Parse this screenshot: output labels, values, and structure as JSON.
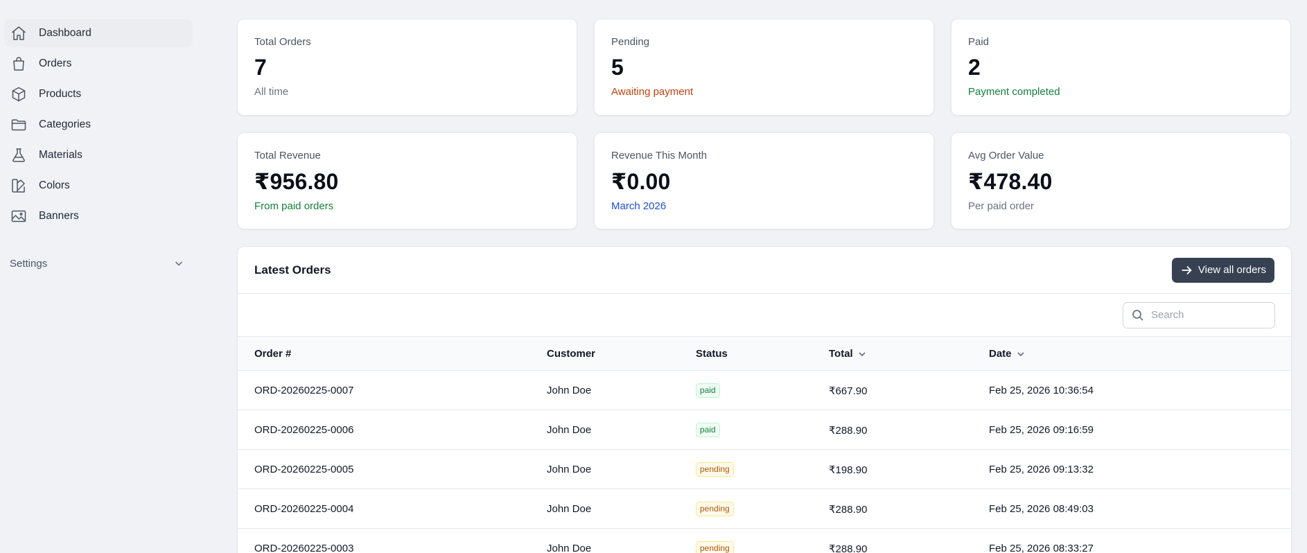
{
  "sidebar": {
    "items": [
      {
        "label": "Dashboard",
        "icon": "home-icon",
        "active": true
      },
      {
        "label": "Orders",
        "icon": "shopping-bag-icon",
        "active": false
      },
      {
        "label": "Products",
        "icon": "cube-icon",
        "active": false
      },
      {
        "label": "Categories",
        "icon": "folder-icon",
        "active": false
      },
      {
        "label": "Materials",
        "icon": "beaker-icon",
        "active": false
      },
      {
        "label": "Colors",
        "icon": "swatch-icon",
        "active": false
      },
      {
        "label": "Banners",
        "icon": "photo-icon",
        "active": false
      }
    ],
    "settings_label": "Settings"
  },
  "stats": [
    {
      "label": "Total Orders",
      "value": "7",
      "sub": "All time",
      "sub_color": "#6b7280"
    },
    {
      "label": "Pending",
      "value": "5",
      "sub": "Awaiting payment",
      "sub_color": "#c2410c"
    },
    {
      "label": "Paid",
      "value": "2",
      "sub": "Payment completed",
      "sub_color": "#15803d"
    },
    {
      "label": "Total Revenue",
      "value": "₹956.80",
      "sub": "From paid orders",
      "sub_color": "#15803d"
    },
    {
      "label": "Revenue This Month",
      "value": "₹0.00",
      "sub": "March 2026",
      "sub_color": "#1d4ed8"
    },
    {
      "label": "Avg Order Value",
      "value": "₹478.40",
      "sub": "Per paid order",
      "sub_color": "#6b7280"
    }
  ],
  "orders_panel": {
    "title": "Latest Orders",
    "view_all_label": "View all orders",
    "search_placeholder": "Search",
    "columns": [
      "Order #",
      "Customer",
      "Status",
      "Total",
      "Date"
    ],
    "rows": [
      {
        "order": "ORD-20260225-0007",
        "customer": "John Doe",
        "status": "paid",
        "total": "₹667.90",
        "date": "Feb 25, 2026 10:36:54"
      },
      {
        "order": "ORD-20260225-0006",
        "customer": "John Doe",
        "status": "paid",
        "total": "₹288.90",
        "date": "Feb 25, 2026 09:16:59"
      },
      {
        "order": "ORD-20260225-0005",
        "customer": "John Doe",
        "status": "pending",
        "total": "₹198.90",
        "date": "Feb 25, 2026 09:13:32"
      },
      {
        "order": "ORD-20260225-0004",
        "customer": "John Doe",
        "status": "pending",
        "total": "₹288.90",
        "date": "Feb 25, 2026 08:49:03"
      },
      {
        "order": "ORD-20260225-0003",
        "customer": "John Doe",
        "status": "pending",
        "total": "₹288.90",
        "date": "Feb 25, 2026 08:33:27"
      }
    ]
  }
}
